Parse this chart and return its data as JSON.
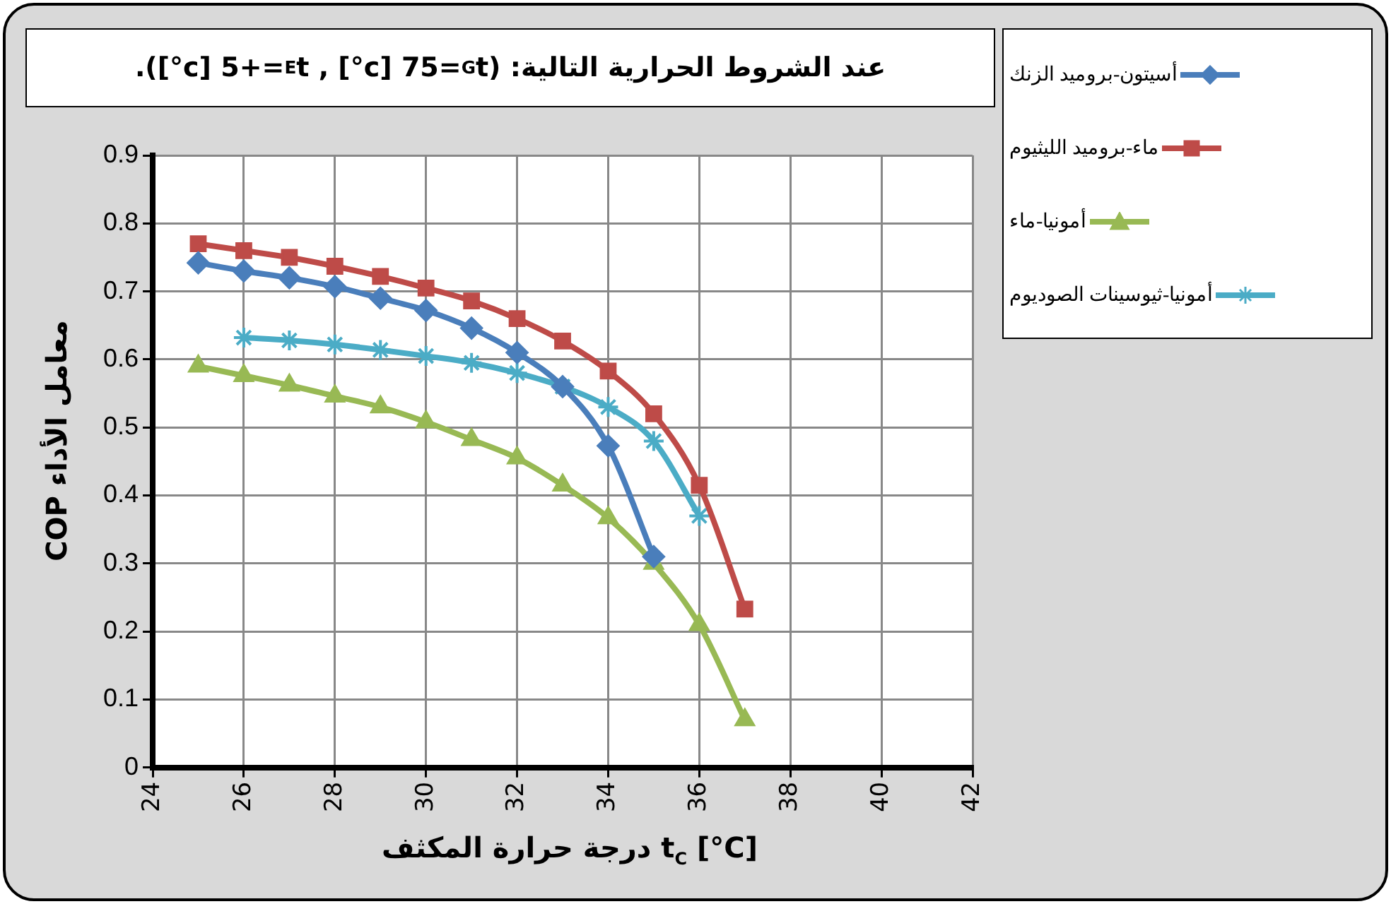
{
  "chart_data": {
    "type": "line",
    "title": "عند الشروط الحرارية التالية: (t$_{G}$=75 [c°] , t$_{E}$=+5 [c°]).",
    "xlabel": "درجة حرارة المكثف t$_{C}$ [°C]",
    "ylabel": "COP معامل الأداء",
    "xlim": [
      24,
      42
    ],
    "xticks": [
      24,
      26,
      28,
      30,
      32,
      34,
      36,
      38,
      40,
      42
    ],
    "ylim": [
      0,
      0.9
    ],
    "yticks": [
      0,
      0.1,
      0.2,
      0.3,
      0.4,
      0.5,
      0.6,
      0.7,
      0.8,
      0.9
    ],
    "grid": true,
    "legend": "top right",
    "line_style": "solid",
    "series": [
      {
        "name": "أسيتون-بروميد الزنك",
        "color": "#4a7ebb",
        "marker": "diamond",
        "x": [
          25,
          26,
          27,
          28,
          29,
          30,
          31,
          32,
          33,
          34,
          35
        ],
        "values": [
          0.742,
          0.73,
          0.72,
          0.707,
          0.69,
          0.672,
          0.646,
          0.61,
          0.56,
          0.473,
          0.31
        ]
      },
      {
        "name": "ماء-بروميد الليثيوم",
        "color": "#be4b48",
        "marker": "square",
        "x": [
          25,
          26,
          27,
          28,
          29,
          30,
          31,
          32,
          33,
          34,
          35,
          36,
          37
        ],
        "values": [
          0.77,
          0.76,
          0.75,
          0.737,
          0.722,
          0.705,
          0.686,
          0.66,
          0.627,
          0.583,
          0.52,
          0.415,
          0.233
        ]
      },
      {
        "name": "أمونيا-ماء",
        "color": "#98b954",
        "marker": "triangle",
        "x": [
          25,
          26,
          27,
          28,
          29,
          30,
          31,
          32,
          33,
          34,
          35,
          36,
          37
        ],
        "values": [
          0.59,
          0.576,
          0.562,
          0.546,
          0.53,
          0.508,
          0.482,
          0.455,
          0.415,
          0.367,
          0.3,
          0.21,
          0.07
        ]
      },
      {
        "name": "أمونيا-ثيوسينات الصوديوم",
        "color": "#4bacc6",
        "marker": "cross",
        "x": [
          26,
          27,
          28,
          29,
          30,
          31,
          32,
          33,
          34,
          35,
          36
        ],
        "values": [
          0.632,
          0.628,
          0.622,
          0.614,
          0.605,
          0.595,
          0.58,
          0.56,
          0.53,
          0.48,
          0.37
        ]
      }
    ]
  }
}
